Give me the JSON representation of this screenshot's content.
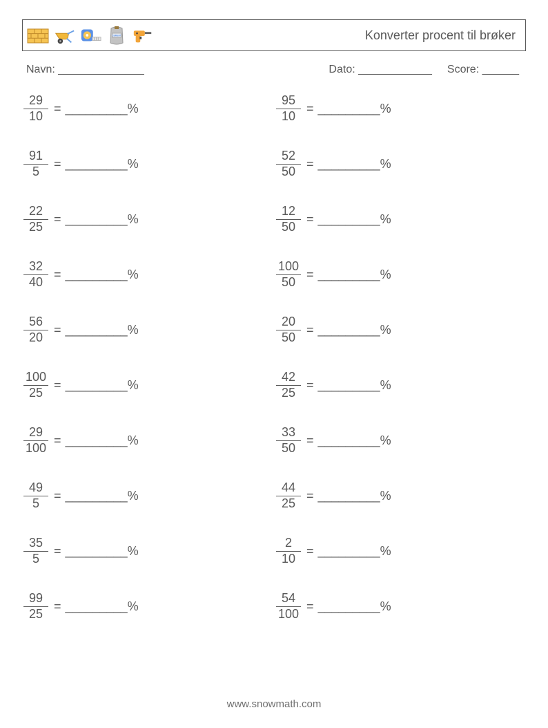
{
  "header": {
    "title": "Konverter procent til brøker"
  },
  "meta": {
    "name_label": "Navn:",
    "name_blank": "______________",
    "date_label": "Dato:",
    "date_blank": "____________",
    "score_label": "Score:",
    "score_blank": "______"
  },
  "problem_template": {
    "equals": " = ",
    "blank": "_________",
    "percent": "%"
  },
  "problems": {
    "left": [
      {
        "num": "29",
        "den": "10"
      },
      {
        "num": "91",
        "den": "5"
      },
      {
        "num": "22",
        "den": "25"
      },
      {
        "num": "32",
        "den": "40"
      },
      {
        "num": "56",
        "den": "20"
      },
      {
        "num": "100",
        "den": "25"
      },
      {
        "num": "29",
        "den": "100"
      },
      {
        "num": "49",
        "den": "5"
      },
      {
        "num": "35",
        "den": "5"
      },
      {
        "num": "99",
        "den": "25"
      }
    ],
    "right": [
      {
        "num": "95",
        "den": "10"
      },
      {
        "num": "52",
        "den": "50"
      },
      {
        "num": "12",
        "den": "50"
      },
      {
        "num": "100",
        "den": "50"
      },
      {
        "num": "20",
        "den": "50"
      },
      {
        "num": "42",
        "den": "25"
      },
      {
        "num": "33",
        "den": "50"
      },
      {
        "num": "44",
        "den": "25"
      },
      {
        "num": "2",
        "den": "10"
      },
      {
        "num": "54",
        "den": "100"
      }
    ]
  },
  "icons": {
    "bricks": {
      "fill": "#f6c453",
      "stroke": "#c08a2a"
    },
    "wheelbarrow": {
      "body": "#f2b83a",
      "wheel": "#474747",
      "bars": "#6aa0e6"
    },
    "tape": {
      "case": "#5a90e6",
      "ring": "#f6c453",
      "tape": "#e8e8e8"
    },
    "cement": {
      "bag": "#c3c3c3",
      "label_bg": "#f2f2f2",
      "label_text": "CEMENT",
      "tie": "#9a7b3f"
    },
    "drill": {
      "body": "#f2a53a",
      "bit": "#5f5f5f",
      "trigger": "#444444"
    }
  },
  "footer": "www.snowmath.com"
}
